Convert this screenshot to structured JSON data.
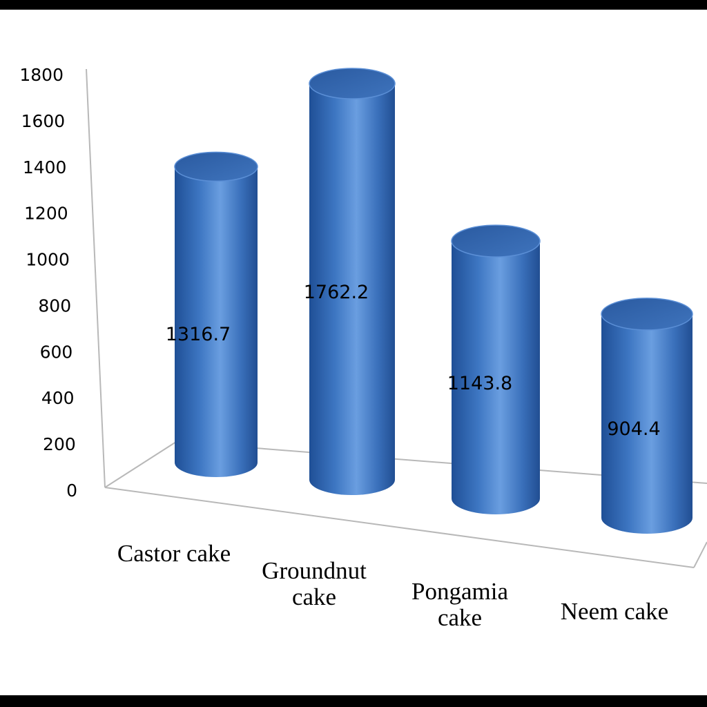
{
  "chart_data": {
    "type": "bar",
    "style": "3d-cylinder",
    "categories": [
      [
        "Castor cake"
      ],
      [
        "Groundnut",
        "cake"
      ],
      [
        "Pongamia",
        "cake"
      ],
      [
        "Neem cake"
      ]
    ],
    "values": [
      1316.7,
      1762.2,
      1143.8,
      904.4
    ],
    "data_labels": [
      "1316.7",
      "1762.2",
      "1143.8",
      "904.4"
    ],
    "yticks": [
      "0",
      "200",
      "400",
      "600",
      "800",
      "1000",
      "1200",
      "1400",
      "1600",
      "1800"
    ],
    "ylim": [
      0,
      1800
    ],
    "bar_color": "#3d76c2",
    "grid": false,
    "legend": "none"
  }
}
